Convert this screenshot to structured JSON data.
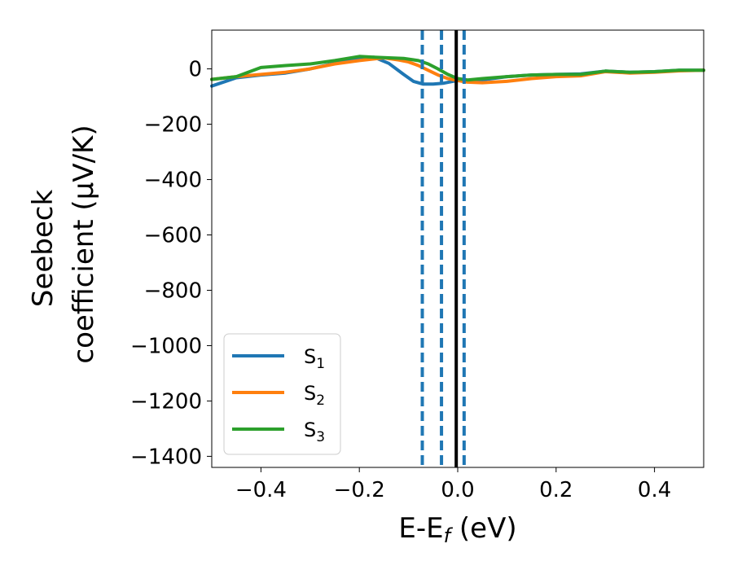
{
  "chart_data": {
    "type": "line",
    "xlabel": "E-E",
    "xlabel_sub": "f",
    "xlabel_unit": " (eV)",
    "ylabel_line1": "Seebeck",
    "ylabel_line2": "coefficient  (μV/K)",
    "xlim": [
      -0.5,
      0.5
    ],
    "ylim": [
      -1440,
      140
    ],
    "xticks": [
      -0.4,
      -0.2,
      0.0,
      0.2,
      0.4
    ],
    "xtick_labels": [
      "−0.4",
      "−0.2",
      "0.0",
      "0.2",
      "0.4"
    ],
    "yticks": [
      0,
      -200,
      -400,
      -600,
      -800,
      -1000,
      -1200,
      -1400
    ],
    "ytick_labels": [
      "0",
      "−200",
      "−400",
      "−600",
      "−800",
      "−1000",
      "−1200",
      "−1400"
    ],
    "grid": false,
    "legend_position": "lower-left",
    "series": [
      {
        "name": "S",
        "sub": "1",
        "color": "#1f77b4",
        "x": [
          -0.5,
          -0.45,
          -0.4,
          -0.35,
          -0.3,
          -0.25,
          -0.2,
          -0.17,
          -0.14,
          -0.11,
          -0.09,
          -0.07,
          -0.05,
          -0.03,
          -0.01,
          0.0,
          0.02,
          0.05,
          0.1,
          0.15,
          0.2,
          0.25,
          0.3,
          0.35,
          0.4,
          0.45,
          0.5
        ],
        "y": [
          -62,
          -32,
          -22,
          -15,
          0,
          20,
          38,
          42,
          20,
          -20,
          -45,
          -55,
          -55,
          -52,
          -45,
          -42,
          -45,
          -40,
          -28,
          -22,
          -20,
          -18,
          -8,
          -12,
          -10,
          -5,
          -5
        ]
      },
      {
        "name": "S",
        "sub": "2",
        "color": "#ff7f0e",
        "x": [
          -0.5,
          -0.45,
          -0.4,
          -0.35,
          -0.3,
          -0.25,
          -0.2,
          -0.15,
          -0.12,
          -0.1,
          -0.08,
          -0.06,
          -0.04,
          -0.02,
          0.0,
          0.02,
          0.05,
          0.1,
          0.15,
          0.2,
          0.25,
          0.3,
          0.35,
          0.4,
          0.45,
          0.5
        ],
        "y": [
          -38,
          -28,
          -20,
          -12,
          0,
          18,
          30,
          40,
          32,
          25,
          12,
          -5,
          -22,
          -35,
          -42,
          -48,
          -50,
          -45,
          -35,
          -28,
          -25,
          -10,
          -15,
          -12,
          -7,
          -5
        ]
      },
      {
        "name": "S",
        "sub": "3",
        "color": "#2ca02c",
        "x": [
          -0.5,
          -0.45,
          -0.4,
          -0.35,
          -0.3,
          -0.25,
          -0.2,
          -0.17,
          -0.14,
          -0.11,
          -0.08,
          -0.06,
          -0.04,
          -0.02,
          0.0,
          0.02,
          0.05,
          0.1,
          0.15,
          0.2,
          0.25,
          0.3,
          0.35,
          0.4,
          0.45,
          0.5
        ],
        "y": [
          -38,
          -28,
          5,
          12,
          18,
          30,
          45,
          42,
          40,
          38,
          30,
          18,
          0,
          -20,
          -35,
          -40,
          -35,
          -28,
          -22,
          -20,
          -20,
          -8,
          -12,
          -10,
          -5,
          -5
        ]
      }
    ],
    "vlines": [
      {
        "x": -0.072,
        "color": "#1f77b4",
        "style": "dashed"
      },
      {
        "x": -0.033,
        "color": "#1f77b4",
        "style": "dashed"
      },
      {
        "x": -0.003,
        "color": "#000000",
        "style": "solid"
      },
      {
        "x": 0.013,
        "color": "#1f77b4",
        "style": "dashed"
      }
    ]
  }
}
